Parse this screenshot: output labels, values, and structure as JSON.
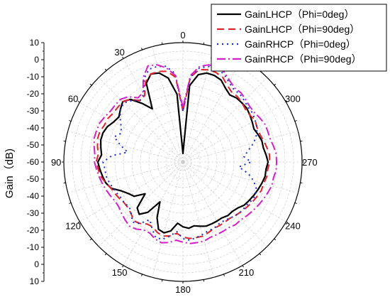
{
  "chart_data": {
    "type": "polar",
    "ylabel": "Gain（dB)",
    "r_ticks": [
      10,
      0,
      -10,
      -20,
      -30,
      -40,
      -50,
      -60
    ],
    "r_range": [
      -60,
      10
    ],
    "angle_labels": [
      "0",
      "30",
      "60",
      "90",
      "120",
      "150",
      "180",
      "210",
      "240",
      "270",
      "300"
    ],
    "angle_values": [
      0,
      30,
      60,
      90,
      120,
      150,
      180,
      210,
      240,
      270,
      300
    ],
    "angle_direction": "counterclockwise",
    "zero_location": "top",
    "grid": true,
    "legend_position": "top-right",
    "series": [
      {
        "name": "GainLHCP（Phi=0deg）",
        "color": "#000000",
        "dash": "solid",
        "angles": [
          0,
          5,
          10,
          15,
          20,
          25,
          30,
          35,
          40,
          45,
          50,
          55,
          60,
          65,
          70,
          75,
          80,
          85,
          90,
          95,
          100,
          105,
          110,
          115,
          120,
          125,
          130,
          135,
          140,
          145,
          150,
          155,
          160,
          165,
          170,
          175,
          180,
          185,
          190,
          195,
          200,
          205,
          210,
          215,
          220,
          225,
          230,
          235,
          240,
          245,
          250,
          255,
          260,
          265,
          270,
          275,
          280,
          285,
          290,
          295,
          300,
          305,
          310,
          315,
          320,
          325,
          330,
          335,
          340,
          345,
          350,
          355
        ],
        "values": [
          -55,
          -20,
          -10,
          -6,
          -5,
          -9,
          -24,
          -18,
          -12,
          -10,
          -12,
          -14,
          -13,
          -11,
          -10,
          -10,
          -11,
          -12,
          -10,
          -11,
          -12,
          -13,
          -15,
          -20,
          -23,
          -25,
          -31,
          -22,
          -20,
          -24,
          -33,
          -24,
          -18,
          -17,
          -19,
          -24,
          -22,
          -21,
          -22,
          -21,
          -20,
          -20,
          -20,
          -20,
          -19,
          -19,
          -18,
          -16,
          -15,
          -14,
          -13,
          -12,
          -11,
          -11,
          -10,
          -11,
          -12,
          -12,
          -13,
          -14,
          -13,
          -12,
          -11,
          -11,
          -11,
          -12,
          -10,
          -7,
          -6,
          -6,
          -8,
          -15
        ]
      },
      {
        "name": "GainLHCP（Phi=90deg）",
        "color": "#e0232a",
        "dash": "10,6",
        "angles": [
          0,
          5,
          10,
          15,
          20,
          25,
          30,
          35,
          40,
          45,
          50,
          55,
          60,
          65,
          70,
          75,
          80,
          85,
          90,
          95,
          100,
          105,
          110,
          115,
          120,
          125,
          130,
          135,
          140,
          145,
          150,
          155,
          160,
          165,
          170,
          175,
          180,
          185,
          190,
          195,
          200,
          205,
          210,
          215,
          220,
          225,
          230,
          235,
          240,
          245,
          250,
          255,
          260,
          265,
          270,
          275,
          280,
          285,
          290,
          295,
          300,
          305,
          310,
          315,
          320,
          325,
          330,
          335,
          340,
          345,
          350,
          355
        ],
        "values": [
          -30,
          -10,
          -6,
          -5,
          -5,
          -8,
          -15,
          -16,
          -12,
          -10,
          -10,
          -10,
          -9,
          -9,
          -8,
          -8,
          -9,
          -10,
          -9,
          -10,
          -11,
          -13,
          -15,
          -16,
          -17,
          -18,
          -18,
          -17,
          -15,
          -16,
          -18,
          -18,
          -16,
          -15,
          -16,
          -18,
          -16,
          -15,
          -15,
          -15,
          -16,
          -17,
          -17,
          -17,
          -17,
          -16,
          -15,
          -14,
          -13,
          -12,
          -11,
          -11,
          -10,
          -10,
          -9,
          -9,
          -10,
          -11,
          -12,
          -12,
          -11,
          -12,
          -12,
          -11,
          -10,
          -10,
          -8,
          -5,
          -4,
          -4,
          -5,
          -10
        ]
      },
      {
        "name": "GainRHCP（Phi=0deg）",
        "color": "#1a2ed6",
        "dash": "2,5",
        "angles": [
          0,
          5,
          10,
          15,
          20,
          25,
          30,
          35,
          40,
          45,
          50,
          55,
          60,
          65,
          70,
          75,
          80,
          85,
          90,
          95,
          100,
          105,
          110,
          115,
          120,
          125,
          130,
          135,
          140,
          145,
          150,
          155,
          160,
          165,
          170,
          175,
          180,
          185,
          190,
          195,
          200,
          205,
          210,
          215,
          220,
          225,
          230,
          235,
          240,
          245,
          250,
          255,
          260,
          265,
          270,
          275,
          280,
          285,
          290,
          295,
          300,
          305,
          310,
          315,
          320,
          325,
          330,
          335,
          340,
          345,
          350,
          355
        ],
        "values": [
          -30,
          -8,
          -3,
          -2,
          -2,
          -6,
          -14,
          -16,
          -13,
          -11,
          -12,
          -15,
          -18,
          -20,
          -17,
          -22,
          -27,
          -18,
          -13,
          -14,
          -14,
          -15,
          -16,
          -17,
          -18,
          -18,
          -19,
          -17,
          -14,
          -16,
          -21,
          -17,
          -13,
          -13,
          -16,
          -19,
          -15,
          -14,
          -15,
          -16,
          -17,
          -17,
          -18,
          -18,
          -17,
          -16,
          -15,
          -15,
          -14,
          -13,
          -14,
          -17,
          -21,
          -27,
          -20,
          -24,
          -21,
          -17,
          -14,
          -12,
          -11,
          -10,
          -10,
          -9,
          -8,
          -8,
          -6,
          -3,
          -2,
          -2,
          -4,
          -10
        ]
      },
      {
        "name": "GainRHCP（Phi=90deg）",
        "color": "#d31fc9",
        "dash": "12,4,2,4",
        "angles": [
          0,
          5,
          10,
          15,
          20,
          25,
          30,
          35,
          40,
          45,
          50,
          55,
          60,
          65,
          70,
          75,
          80,
          85,
          90,
          95,
          100,
          105,
          110,
          115,
          120,
          125,
          130,
          135,
          140,
          145,
          150,
          155,
          160,
          165,
          170,
          175,
          180,
          185,
          190,
          195,
          200,
          205,
          210,
          215,
          220,
          225,
          230,
          235,
          240,
          245,
          250,
          255,
          260,
          265,
          270,
          275,
          280,
          285,
          290,
          295,
          300,
          305,
          310,
          315,
          320,
          325,
          330,
          335,
          340,
          345,
          350,
          355
        ],
        "values": [
          -28,
          -9,
          -4,
          -1,
          0,
          -5,
          -13,
          -14,
          -10,
          -8,
          -8,
          -8,
          -7,
          -6,
          -6,
          -6,
          -7,
          -8,
          -8,
          -9,
          -10,
          -11,
          -12,
          -13,
          -14,
          -14,
          -13,
          -12,
          -11,
          -12,
          -14,
          -14,
          -12,
          -11,
          -12,
          -14,
          -13,
          -12,
          -12,
          -12,
          -13,
          -13,
          -13,
          -13,
          -12,
          -12,
          -11,
          -10,
          -9,
          -8,
          -7,
          -6,
          -6,
          -5,
          -5,
          -5,
          -6,
          -7,
          -7,
          -7,
          -8,
          -9,
          -9,
          -8,
          -7,
          -7,
          -5,
          -2,
          -1,
          -1,
          -3,
          -9
        ]
      }
    ]
  }
}
